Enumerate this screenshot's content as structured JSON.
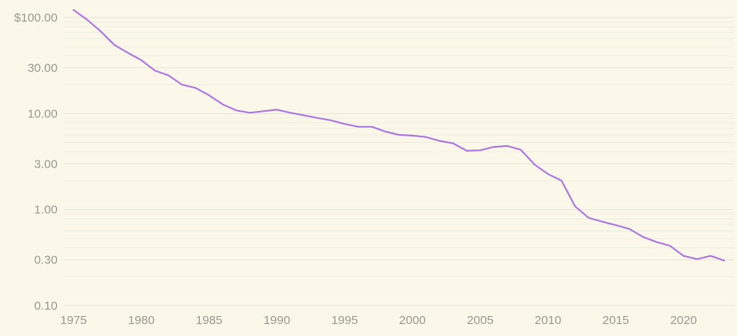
{
  "chart_data": {
    "type": "line",
    "title": "",
    "xlabel": "",
    "ylabel": "",
    "y_scale": "log",
    "ylim": [
      0.1,
      125
    ],
    "xlim": [
      1975,
      2023
    ],
    "grid": true,
    "colors": {
      "background": "#fbf8ea",
      "line": "#b07ee0",
      "tick_text": "#9a9a92",
      "grid": "#e4e6d9"
    },
    "y_ticks": [
      {
        "value": 100,
        "label": "$100.00"
      },
      {
        "value": 30,
        "label": "30.00"
      },
      {
        "value": 10,
        "label": "10.00"
      },
      {
        "value": 3,
        "label": "3.00"
      },
      {
        "value": 1,
        "label": "1.00"
      },
      {
        "value": 0.3,
        "label": "0.30"
      },
      {
        "value": 0.1,
        "label": "0.10"
      }
    ],
    "x_ticks": [
      {
        "value": 1975,
        "label": "1975"
      },
      {
        "value": 1980,
        "label": "1980"
      },
      {
        "value": 1985,
        "label": "1985"
      },
      {
        "value": 1990,
        "label": "1990"
      },
      {
        "value": 1995,
        "label": "1995"
      },
      {
        "value": 2000,
        "label": "2000"
      },
      {
        "value": 2005,
        "label": "2005"
      },
      {
        "value": 2010,
        "label": "2010"
      },
      {
        "value": 2015,
        "label": "2015"
      },
      {
        "value": 2020,
        "label": "2020"
      }
    ],
    "series": [
      {
        "x": [
          1975,
          1976,
          1977,
          1978,
          1979,
          1980,
          1981,
          1982,
          1983,
          1984,
          1985,
          1986,
          1987,
          1988,
          1989,
          1990,
          1991,
          1992,
          1993,
          1994,
          1995,
          1996,
          1997,
          1998,
          1999,
          2000,
          2001,
          2002,
          2003,
          2004,
          2005,
          2006,
          2007,
          2008,
          2009,
          2010,
          2011,
          2012,
          2013,
          2014,
          2015,
          2016,
          2017,
          2018,
          2019,
          2020,
          2021,
          2022,
          2023
        ],
        "values": [
          120,
          95,
          72,
          52,
          43,
          36,
          28,
          25,
          20,
          18.5,
          15.5,
          12.5,
          10.8,
          10.2,
          10.6,
          11,
          10.2,
          9.6,
          9.0,
          8.5,
          7.8,
          7.3,
          7.3,
          6.5,
          6.0,
          5.9,
          5.7,
          5.2,
          4.9,
          4.1,
          4.15,
          4.5,
          4.6,
          4.2,
          2.95,
          2.35,
          2.0,
          1.08,
          0.82,
          0.75,
          0.69,
          0.63,
          0.52,
          0.46,
          0.42,
          0.33,
          0.305,
          0.33,
          0.295
        ]
      }
    ]
  }
}
